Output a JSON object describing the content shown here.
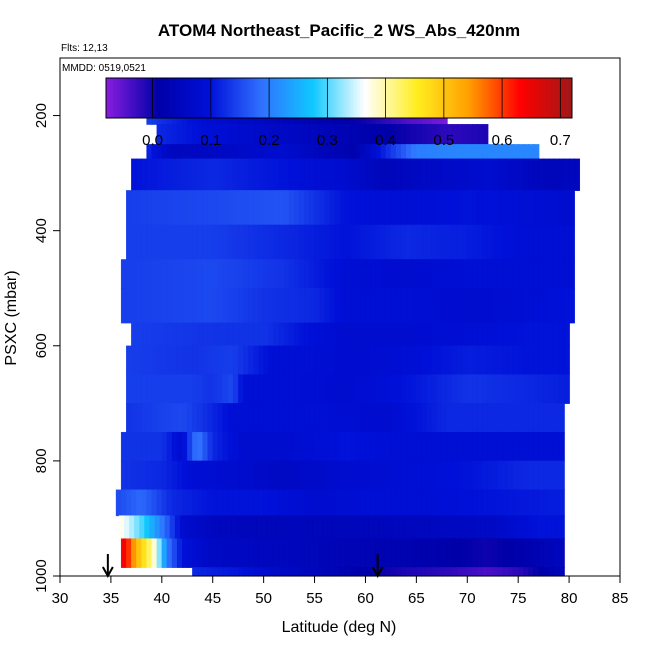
{
  "chart_data": {
    "type": "heatmap",
    "title": "ATOM4 Northeast_Pacific_2 WS_Abs_420nm",
    "annotations": [
      "Flts: 12,13",
      "MMDD: 0519,0521"
    ],
    "xlabel": "Latitude (deg N)",
    "ylabel": "PSXC (mbar)",
    "xlim": [
      30,
      85
    ],
    "ylim": [
      1000,
      100
    ],
    "y_reversed": true,
    "x_ticks": [
      30,
      35,
      40,
      45,
      50,
      55,
      60,
      65,
      70,
      75,
      80,
      85
    ],
    "x_tick_labels": [
      "30",
      "35",
      "40",
      "45",
      "50",
      "55",
      "60",
      "65",
      "70",
      "75",
      "80",
      "85"
    ],
    "y_ticks": [
      200,
      400,
      600,
      800,
      1000
    ],
    "y_tick_labels": [
      "200",
      "400",
      "600",
      "800",
      "1000"
    ],
    "colorbar": {
      "range": [
        -0.08,
        0.72
      ],
      "ticks": [
        0.0,
        0.1,
        0.2,
        0.3,
        0.4,
        0.5,
        0.6,
        0.7
      ],
      "tick_labels": [
        "0.0",
        "0.1",
        "0.2",
        "0.3",
        "0.4",
        "0.5",
        "0.6",
        "0.7"
      ],
      "colors": [
        "#8a1de0",
        "#0000a8",
        "#0010d8",
        "#3070ff",
        "#10c8ff",
        "#ffffff",
        "#ffee20",
        "#ffa000",
        "#ff0000",
        "#a01818"
      ]
    },
    "arrows_lat": [
      34.7,
      61.2
    ],
    "bands": [
      {
        "p": [
          175,
          215
        ],
        "lat": [
          38.5,
          68
        ],
        "v": [
          [
            38.5,
            0.14
          ],
          [
            45,
            0.08
          ],
          [
            52,
            0.04
          ],
          [
            60,
            0.0
          ],
          [
            64,
            -0.04
          ],
          [
            68,
            -0.07
          ]
        ]
      },
      {
        "p": [
          215,
          250
        ],
        "lat": [
          39.5,
          72
        ],
        "v": [
          [
            39.5,
            0.12
          ],
          [
            45,
            0.09
          ],
          [
            52,
            0.06
          ],
          [
            58,
            0.03
          ],
          [
            64,
            0.0
          ],
          [
            68,
            -0.02
          ],
          [
            72,
            -0.01
          ]
        ]
      },
      {
        "p": [
          250,
          275
        ],
        "lat": [
          38.5,
          77
        ],
        "v": [
          [
            38.5,
            0.12
          ],
          [
            41,
            0.05
          ],
          [
            46,
            0.06
          ],
          [
            52,
            0.08
          ],
          [
            56,
            0.04
          ],
          [
            59,
            0.02
          ],
          [
            62,
            0.12
          ],
          [
            65,
            0.2
          ],
          [
            70,
            0.21
          ],
          [
            77,
            0.21
          ]
        ]
      },
      {
        "p": [
          275,
          330
        ],
        "lat": [
          37,
          81
        ],
        "v": [
          [
            37,
            0.1
          ],
          [
            45,
            0.12
          ],
          [
            52,
            0.1
          ],
          [
            58,
            0.08
          ],
          [
            62,
            0.04
          ],
          [
            66,
            0.06
          ],
          [
            72,
            0.08
          ],
          [
            78,
            0.04
          ],
          [
            81,
            0.05
          ]
        ]
      },
      {
        "p": [
          330,
          390
        ],
        "lat": [
          36.5,
          80.5
        ],
        "v": [
          [
            36.5,
            0.14
          ],
          [
            45,
            0.15
          ],
          [
            52,
            0.16
          ],
          [
            58,
            0.1
          ],
          [
            64,
            0.09
          ],
          [
            70,
            0.1
          ],
          [
            76,
            0.09
          ],
          [
            80.5,
            0.08
          ]
        ]
      },
      {
        "p": [
          390,
          450
        ],
        "lat": [
          36.5,
          80.5
        ],
        "v": [
          [
            36.5,
            0.14
          ],
          [
            45,
            0.14
          ],
          [
            52,
            0.12
          ],
          [
            58,
            0.1
          ],
          [
            64,
            0.12
          ],
          [
            70,
            0.11
          ],
          [
            76,
            0.09
          ],
          [
            80.5,
            0.09
          ]
        ]
      },
      {
        "p": [
          450,
          500
        ],
        "lat": [
          36,
          80.5
        ],
        "v": [
          [
            36,
            0.14
          ],
          [
            45,
            0.15
          ],
          [
            52,
            0.13
          ],
          [
            58,
            0.09
          ],
          [
            64,
            0.08
          ],
          [
            70,
            0.09
          ],
          [
            76,
            0.09
          ],
          [
            80.5,
            0.09
          ]
        ]
      },
      {
        "p": [
          500,
          560
        ],
        "lat": [
          36,
          80.5
        ],
        "v": [
          [
            36,
            0.14
          ],
          [
            45,
            0.15
          ],
          [
            50,
            0.13
          ],
          [
            55,
            0.12
          ],
          [
            58,
            0.09
          ],
          [
            64,
            0.09
          ],
          [
            70,
            0.08
          ],
          [
            76,
            0.09
          ],
          [
            80.5,
            0.1
          ]
        ]
      },
      {
        "p": [
          560,
          600
        ],
        "lat": [
          37,
          80
        ],
        "v": [
          [
            37,
            0.14
          ],
          [
            45,
            0.13
          ],
          [
            50,
            0.13
          ],
          [
            54,
            0.1
          ],
          [
            58,
            0.08
          ],
          [
            64,
            0.08
          ],
          [
            70,
            0.09
          ],
          [
            76,
            0.1
          ],
          [
            80,
            0.1
          ]
        ]
      },
      {
        "p": [
          600,
          650
        ],
        "lat": [
          36.5,
          80
        ],
        "v": [
          [
            36.5,
            0.14
          ],
          [
            43,
            0.13
          ],
          [
            47,
            0.14
          ],
          [
            51,
            0.09
          ],
          [
            55,
            0.09
          ],
          [
            58,
            0.08
          ],
          [
            64,
            0.09
          ],
          [
            70,
            0.11
          ],
          [
            76,
            0.1
          ],
          [
            80,
            0.1
          ]
        ]
      },
      {
        "p": [
          650,
          700
        ],
        "lat": [
          36.5,
          80
        ],
        "v": [
          [
            36.5,
            0.14
          ],
          [
            43,
            0.14
          ],
          [
            45,
            0.13
          ],
          [
            47,
            0.15
          ],
          [
            48,
            0.09
          ],
          [
            53,
            0.09
          ],
          [
            58,
            0.08
          ],
          [
            64,
            0.1
          ],
          [
            70,
            0.13
          ],
          [
            76,
            0.12
          ],
          [
            80,
            0.11
          ]
        ]
      },
      {
        "p": [
          700,
          750
        ],
        "lat": [
          36.5,
          79.5
        ],
        "v": [
          [
            36.5,
            0.13
          ],
          [
            42,
            0.15
          ],
          [
            44,
            0.13
          ],
          [
            47,
            0.09
          ],
          [
            52,
            0.09
          ],
          [
            56,
            0.09
          ],
          [
            62,
            0.08
          ],
          [
            68,
            0.12
          ],
          [
            76,
            0.12
          ],
          [
            79.5,
            0.12
          ]
        ]
      },
      {
        "p": [
          750,
          800
        ],
        "lat": [
          36,
          79.5
        ],
        "v": [
          [
            36,
            0.13
          ],
          [
            40,
            0.13
          ],
          [
            42,
            0.08
          ],
          [
            43.5,
            0.2
          ],
          [
            45,
            0.12
          ],
          [
            48,
            0.08
          ],
          [
            52,
            0.08
          ],
          [
            58,
            0.1
          ],
          [
            64,
            0.09
          ],
          [
            70,
            0.09
          ],
          [
            79.5,
            0.09
          ]
        ]
      },
      {
        "p": [
          800,
          850
        ],
        "lat": [
          36,
          79.5
        ],
        "v": [
          [
            36,
            0.13
          ],
          [
            40,
            0.12
          ],
          [
            43,
            0.09
          ],
          [
            47,
            0.08
          ],
          [
            52,
            0.06
          ],
          [
            58,
            0.08
          ],
          [
            64,
            0.09
          ],
          [
            70,
            0.1
          ],
          [
            76,
            0.12
          ],
          [
            79.5,
            0.12
          ]
        ]
      },
      {
        "p": [
          850,
          895
        ],
        "lat": [
          35.5,
          79.5
        ],
        "v": [
          [
            35.5,
            0.15
          ],
          [
            38,
            0.18
          ],
          [
            41,
            0.12
          ],
          [
            45,
            0.1
          ],
          [
            50,
            0.1
          ],
          [
            55,
            0.08
          ],
          [
            60,
            0.09
          ],
          [
            66,
            0.09
          ],
          [
            72,
            0.1
          ],
          [
            79.5,
            0.11
          ]
        ]
      },
      {
        "p": [
          895,
          935
        ],
        "lat": [
          35.8,
          79.5
        ],
        "v": [
          [
            35.8,
            0.38
          ],
          [
            38,
            0.3
          ],
          [
            40,
            0.2
          ],
          [
            42,
            0.08
          ],
          [
            45,
            0.05
          ],
          [
            50,
            0.04
          ],
          [
            55,
            0.04
          ],
          [
            60,
            0.04
          ],
          [
            66,
            0.05
          ],
          [
            72,
            0.06
          ],
          [
            77,
            0.1
          ],
          [
            79.5,
            0.1
          ]
        ]
      },
      {
        "p": [
          935,
          985
        ],
        "lat": [
          36,
          79.5
        ],
        "v": [
          [
            36,
            0.66
          ],
          [
            36.8,
            0.6
          ],
          [
            37.5,
            0.52
          ],
          [
            38.5,
            0.45
          ],
          [
            39.5,
            0.36
          ],
          [
            40.5,
            0.2
          ],
          [
            42,
            0.1
          ],
          [
            45,
            0.06
          ],
          [
            50,
            0.05
          ],
          [
            55,
            0.04
          ],
          [
            60,
            0.03
          ],
          [
            66,
            0.02
          ],
          [
            72,
            0.0
          ],
          [
            76,
            0.02
          ],
          [
            79.5,
            0.05
          ]
        ]
      },
      {
        "p": [
          985,
          1000
        ],
        "lat": [
          43,
          79.5
        ],
        "v": [
          [
            43,
            0.12
          ],
          [
            48,
            0.1
          ],
          [
            52,
            0.06
          ],
          [
            56,
            0.04
          ],
          [
            60,
            0.01
          ],
          [
            64,
            -0.01
          ],
          [
            68,
            -0.02
          ],
          [
            72,
            -0.04
          ],
          [
            75,
            -0.02
          ],
          [
            78,
            0.02
          ],
          [
            79.5,
            0.04
          ]
        ]
      }
    ]
  }
}
